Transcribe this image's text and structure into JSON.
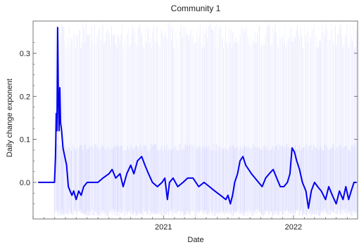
{
  "chart_data": {
    "type": "line",
    "title": "Community 1",
    "xlabel": "Date",
    "ylabel": "Daily change exponent",
    "x_ticks": [
      {
        "value": "2021-01-01",
        "label": "2021"
      },
      {
        "value": "2022-01-01",
        "label": "2022"
      }
    ],
    "y_ticks": [
      {
        "value": 0.0,
        "label": "0.0"
      },
      {
        "value": 0.1,
        "label": "0.1"
      },
      {
        "value": 0.2,
        "label": "0.2"
      },
      {
        "value": 0.3,
        "label": "0.3"
      }
    ],
    "xlim": [
      "2020-01-01",
      "2022-06-30"
    ],
    "ylim": [
      -0.085,
      0.375
    ],
    "grid": false,
    "colors": {
      "line": "#0000ee",
      "band": "#5a5aff"
    },
    "series": [
      {
        "values": [
          [
            "2020-01-15",
            0.0
          ],
          [
            "2020-02-10",
            0.0
          ],
          [
            "2020-03-01",
            0.0
          ],
          [
            "2020-03-04",
            0.06
          ],
          [
            "2020-03-06",
            0.16
          ],
          [
            "2020-03-08",
            0.12
          ],
          [
            "2020-03-10",
            0.36
          ],
          [
            "2020-03-12",
            0.2
          ],
          [
            "2020-03-14",
            0.12
          ],
          [
            "2020-03-16",
            0.22
          ],
          [
            "2020-03-18",
            0.14
          ],
          [
            "2020-03-21",
            0.12
          ],
          [
            "2020-03-25",
            0.08
          ],
          [
            "2020-03-30",
            0.06
          ],
          [
            "2020-04-04",
            0.04
          ],
          [
            "2020-04-09",
            -0.01
          ],
          [
            "2020-04-14",
            -0.02
          ],
          [
            "2020-04-19",
            -0.03
          ],
          [
            "2020-04-24",
            -0.02
          ],
          [
            "2020-05-01",
            -0.04
          ],
          [
            "2020-05-08",
            -0.02
          ],
          [
            "2020-05-15",
            -0.03
          ],
          [
            "2020-05-22",
            -0.01
          ],
          [
            "2020-06-01",
            0.0
          ],
          [
            "2020-06-15",
            0.0
          ],
          [
            "2020-07-01",
            0.0
          ],
          [
            "2020-07-15",
            0.01
          ],
          [
            "2020-08-01",
            0.02
          ],
          [
            "2020-08-10",
            0.03
          ],
          [
            "2020-08-20",
            0.01
          ],
          [
            "2020-09-01",
            0.02
          ],
          [
            "2020-09-10",
            -0.01
          ],
          [
            "2020-09-20",
            0.02
          ],
          [
            "2020-10-01",
            0.04
          ],
          [
            "2020-10-10",
            0.02
          ],
          [
            "2020-10-20",
            0.05
          ],
          [
            "2020-11-01",
            0.06
          ],
          [
            "2020-11-10",
            0.04
          ],
          [
            "2020-11-20",
            0.02
          ],
          [
            "2020-12-01",
            0.0
          ],
          [
            "2020-12-15",
            -0.01
          ],
          [
            "2020-12-28",
            0.0
          ],
          [
            "2021-01-05",
            0.01
          ],
          [
            "2021-01-12",
            -0.04
          ],
          [
            "2021-01-18",
            0.0
          ],
          [
            "2021-01-28",
            0.01
          ],
          [
            "2021-02-10",
            -0.01
          ],
          [
            "2021-02-25",
            0.0
          ],
          [
            "2021-03-10",
            0.01
          ],
          [
            "2021-03-25",
            0.01
          ],
          [
            "2021-04-10",
            -0.01
          ],
          [
            "2021-04-25",
            0.0
          ],
          [
            "2021-05-10",
            -0.01
          ],
          [
            "2021-05-25",
            -0.02
          ],
          [
            "2021-06-10",
            -0.03
          ],
          [
            "2021-06-25",
            -0.04
          ],
          [
            "2021-07-01",
            -0.03
          ],
          [
            "2021-07-08",
            -0.05
          ],
          [
            "2021-07-14",
            -0.03
          ],
          [
            "2021-07-20",
            0.0
          ],
          [
            "2021-07-28",
            0.02
          ],
          [
            "2021-08-04",
            0.05
          ],
          [
            "2021-08-12",
            0.06
          ],
          [
            "2021-08-20",
            0.04
          ],
          [
            "2021-08-28",
            0.03
          ],
          [
            "2021-09-05",
            0.02
          ],
          [
            "2021-09-15",
            0.01
          ],
          [
            "2021-09-25",
            0.0
          ],
          [
            "2021-10-05",
            -0.01
          ],
          [
            "2021-10-15",
            0.01
          ],
          [
            "2021-10-25",
            0.02
          ],
          [
            "2021-11-05",
            0.03
          ],
          [
            "2021-11-15",
            0.01
          ],
          [
            "2021-11-25",
            -0.01
          ],
          [
            "2021-12-05",
            -0.01
          ],
          [
            "2021-12-15",
            0.0
          ],
          [
            "2021-12-22",
            0.02
          ],
          [
            "2021-12-28",
            0.08
          ],
          [
            "2022-01-04",
            0.07
          ],
          [
            "2022-01-10",
            0.05
          ],
          [
            "2022-01-18",
            0.03
          ],
          [
            "2022-01-26",
            0.0
          ],
          [
            "2022-02-05",
            -0.02
          ],
          [
            "2022-02-12",
            -0.06
          ],
          [
            "2022-02-20",
            -0.02
          ],
          [
            "2022-03-01",
            0.0
          ],
          [
            "2022-03-10",
            -0.01
          ],
          [
            "2022-03-20",
            -0.02
          ],
          [
            "2022-04-01",
            -0.04
          ],
          [
            "2022-04-10",
            -0.01
          ],
          [
            "2022-04-20",
            -0.03
          ],
          [
            "2022-05-01",
            -0.05
          ],
          [
            "2022-05-10",
            -0.02
          ],
          [
            "2022-05-20",
            -0.04
          ],
          [
            "2022-05-28",
            -0.01
          ],
          [
            "2022-06-05",
            -0.04
          ],
          [
            "2022-06-12",
            -0.02
          ],
          [
            "2022-06-20",
            0.0
          ],
          [
            "2022-06-27",
            0.0
          ]
        ]
      }
    ]
  }
}
